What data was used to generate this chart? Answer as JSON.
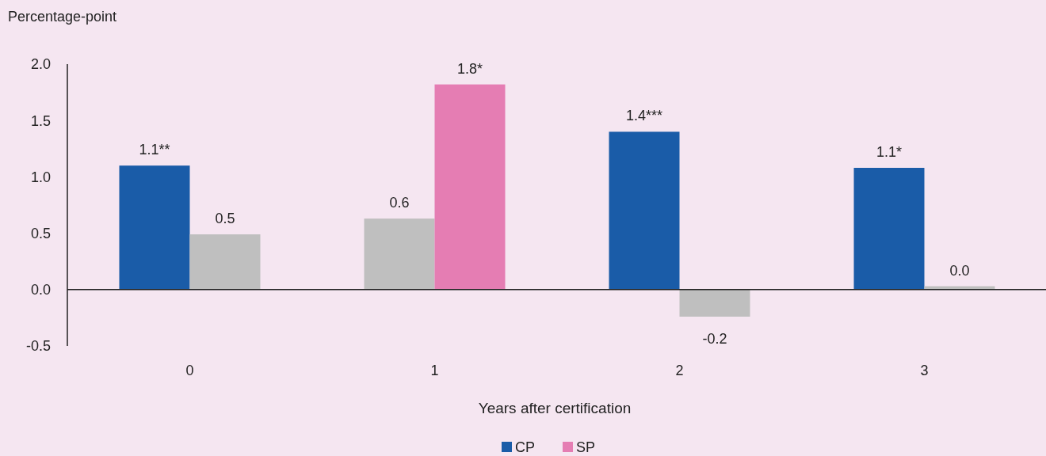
{
  "chart_data": {
    "type": "bar",
    "ylabel": "Percentage-point",
    "xlabel": "Years after certification",
    "categories": [
      "0",
      "1",
      "2",
      "3"
    ],
    "series": [
      {
        "name": "CP",
        "color": "#1a5ca8",
        "colors": [
          "#1a5ca8",
          "#bfbfbf",
          "#1a5ca8",
          "#1a5ca8"
        ],
        "values": [
          1.1,
          0.63,
          1.4,
          1.08
        ],
        "value_labels": [
          "1.1**",
          "0.6",
          "1.4***",
          "1.1*"
        ]
      },
      {
        "name": "SP",
        "color": "#e57db3",
        "colors": [
          "#bfbfbf",
          "#e57db3",
          "#bfbfbf",
          "#bfbfbf"
        ],
        "values": [
          0.49,
          1.82,
          -0.24,
          0.03
        ],
        "value_labels": [
          "0.5",
          "1.8*",
          "-0.2",
          "0.0"
        ]
      }
    ],
    "ylim": [
      -0.5,
      2.0
    ],
    "yticks": [
      {
        "value": -0.5,
        "label": "-0.5"
      },
      {
        "value": 0,
        "label": "0.0"
      },
      {
        "value": 0.5,
        "label": "0.5"
      },
      {
        "value": 1,
        "label": "1.0"
      },
      {
        "value": 1.5,
        "label": "1.5"
      },
      {
        "value": 2,
        "label": "2.0"
      }
    ],
    "legend": "bottom"
  }
}
